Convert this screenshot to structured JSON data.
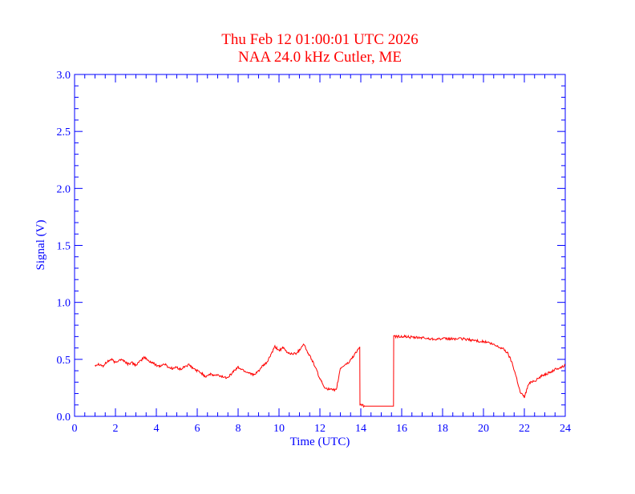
{
  "chart_data": {
    "type": "line",
    "title": "Thu Feb 12 01:00:01 UTC 2026",
    "subtitle": "NAA 24.0 kHz Cutler, ME",
    "xlabel": "Time (UTC)",
    "ylabel": "Signal (V)",
    "xlim": [
      0,
      24
    ],
    "ylim": [
      0,
      3.0
    ],
    "xticks": [
      "0",
      "2",
      "4",
      "6",
      "8",
      "10",
      "12",
      "14",
      "16",
      "18",
      "20",
      "22",
      "24"
    ],
    "yticks": [
      "0.0",
      "0.5",
      "1.0",
      "1.5",
      "2.0",
      "2.5",
      "3.0"
    ],
    "grid": false,
    "colors": {
      "title": "#ff0000",
      "axes": "#0000ff",
      "series": "#ff0000"
    },
    "series": [
      {
        "x": [
          1.0,
          1.2,
          1.4,
          1.6,
          1.8,
          2.0,
          2.2,
          2.4,
          2.6,
          2.8,
          3.0,
          3.2,
          3.4,
          3.6,
          3.8,
          4.0,
          4.2,
          4.4,
          4.6,
          4.8,
          5.0,
          5.2,
          5.4,
          5.6,
          5.8,
          6.0,
          6.2,
          6.4,
          6.6,
          6.8,
          7.0,
          7.2,
          7.4,
          7.6,
          7.8,
          8.0,
          8.2,
          8.4,
          8.6,
          8.8,
          9.0,
          9.2,
          9.4,
          9.6,
          9.8,
          10.0,
          10.2,
          10.4,
          10.6,
          10.8,
          11.0,
          11.2,
          11.4,
          11.6,
          11.8,
          12.0,
          12.2,
          12.4,
          12.6,
          12.8,
          13.0,
          13.2,
          13.4,
          13.6,
          13.8,
          13.95,
          13.96,
          14.2,
          14.6,
          15.0,
          15.4,
          15.6,
          15.61,
          15.8,
          16.2,
          16.6,
          17.0,
          17.4,
          17.8,
          18.2,
          18.6,
          19.0,
          19.4,
          19.8,
          20.2,
          20.6,
          21.0,
          21.2,
          21.4,
          21.6,
          21.8,
          22.0,
          22.2,
          22.4,
          22.6,
          22.8,
          23.0,
          23.2,
          23.4,
          23.6,
          23.8,
          24.0
        ],
        "values": [
          0.45,
          0.46,
          0.44,
          0.48,
          0.5,
          0.47,
          0.5,
          0.49,
          0.46,
          0.47,
          0.45,
          0.48,
          0.52,
          0.49,
          0.47,
          0.45,
          0.44,
          0.46,
          0.43,
          0.42,
          0.43,
          0.41,
          0.44,
          0.45,
          0.42,
          0.4,
          0.38,
          0.35,
          0.37,
          0.36,
          0.36,
          0.35,
          0.34,
          0.36,
          0.4,
          0.43,
          0.41,
          0.39,
          0.38,
          0.36,
          0.4,
          0.44,
          0.47,
          0.54,
          0.61,
          0.58,
          0.6,
          0.56,
          0.55,
          0.55,
          0.58,
          0.64,
          0.56,
          0.5,
          0.42,
          0.33,
          0.26,
          0.24,
          0.23,
          0.23,
          0.42,
          0.45,
          0.47,
          0.52,
          0.57,
          0.61,
          0.1,
          0.09,
          0.09,
          0.09,
          0.09,
          0.09,
          0.7,
          0.7,
          0.7,
          0.69,
          0.69,
          0.68,
          0.68,
          0.68,
          0.68,
          0.68,
          0.67,
          0.66,
          0.65,
          0.62,
          0.59,
          0.55,
          0.47,
          0.35,
          0.21,
          0.17,
          0.28,
          0.31,
          0.32,
          0.35,
          0.37,
          0.38,
          0.4,
          0.42,
          0.43,
          0.45
        ]
      }
    ]
  }
}
